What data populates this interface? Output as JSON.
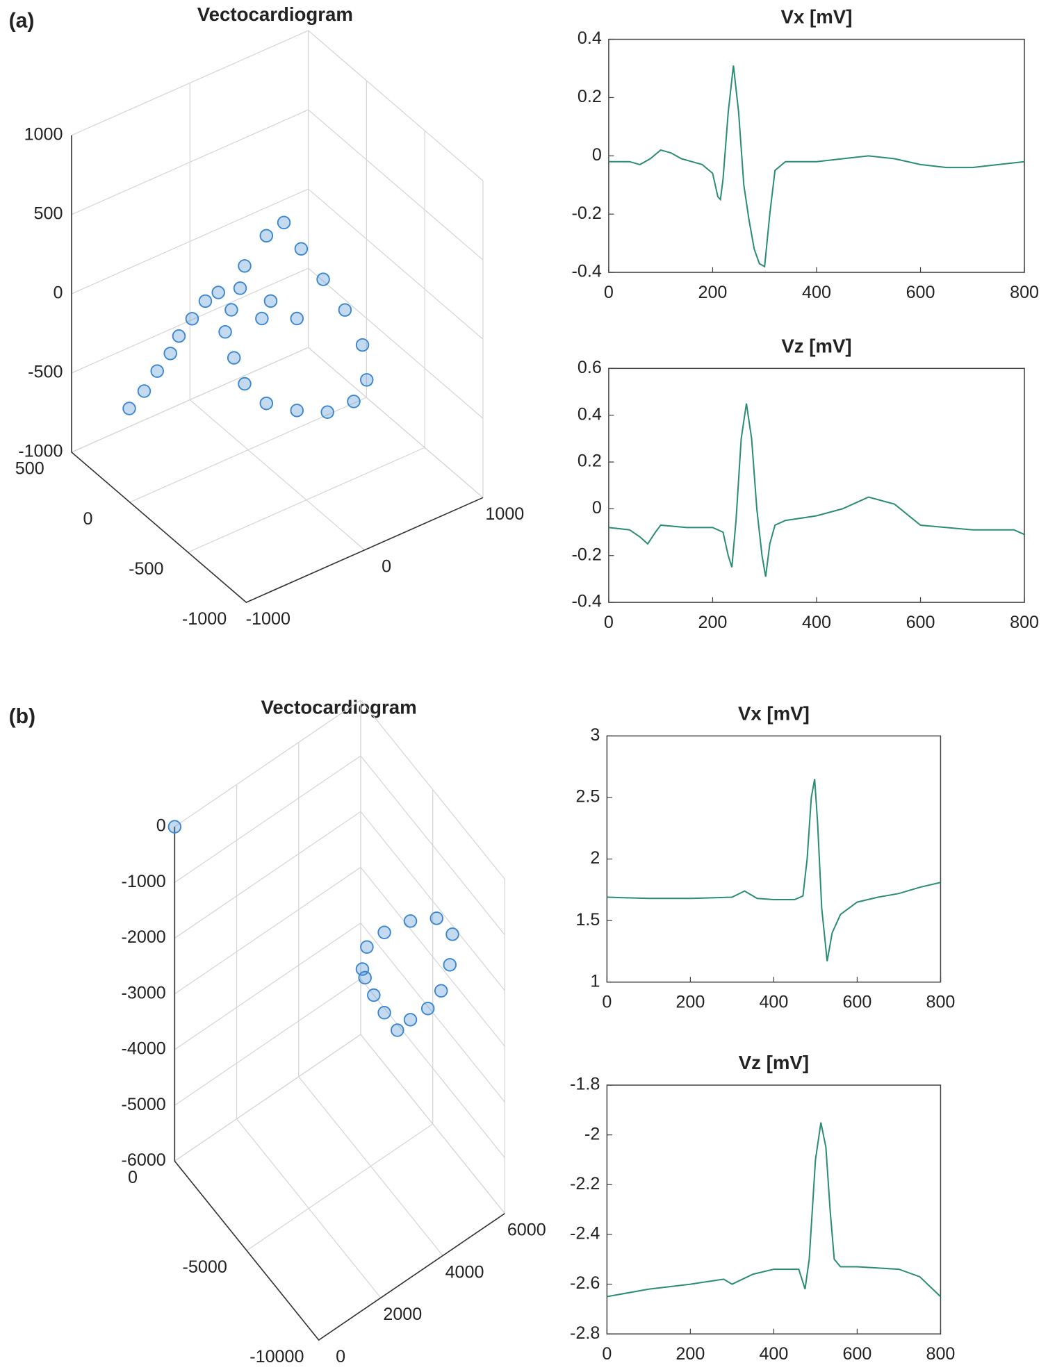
{
  "chart_data": [
    {
      "type": "scatter3d",
      "label": "(a)",
      "title": "Vectocardiogram",
      "color": "#3b86d0",
      "xlim": [
        -1000,
        1000
      ],
      "xticks": [
        -1000,
        0,
        1000
      ],
      "ylim": [
        -1000,
        500
      ],
      "yticks": [
        -1000,
        -500,
        0,
        500
      ],
      "zlim": [
        -1000,
        1000
      ],
      "zticks": [
        -1000,
        -500,
        0,
        500,
        1000
      ],
      "x": [
        -808,
        -682,
        -572,
        -608,
        -536,
        -572,
        -608,
        -498,
        -314,
        -56,
        166,
        -130,
        -388,
        -276,
        -92,
        56,
        202,
        388,
        572,
        720,
        756,
        646,
        424,
        166,
        -92,
        -276,
        -366,
        -440
      ],
      "y": [
        200,
        200,
        200,
        50,
        50,
        -100,
        -250,
        -250,
        -250,
        -250,
        -250,
        -250,
        -250,
        -250,
        -250,
        -250,
        -250,
        -250,
        -250,
        -250,
        -250,
        -250,
        -250,
        -250,
        -250,
        -250,
        -250,
        -250
      ],
      "z": [
        -598,
        -530,
        -440,
        -222,
        -136,
        80,
        298,
        316,
        282,
        116,
        -68,
        30,
        170,
        410,
        540,
        574,
        360,
        106,
        -148,
        -418,
        -650,
        -750,
        -744,
        -648,
        -518,
        -334,
        -140,
        48
      ]
    },
    {
      "type": "line",
      "title": "Vx [mV]",
      "color": "#2b8c74",
      "xlim": [
        0,
        800
      ],
      "xticks": [
        0,
        200,
        400,
        600,
        800
      ],
      "ylim": [
        -0.4,
        0.4
      ],
      "yticks": [
        -0.4,
        -0.2,
        0,
        0.2,
        0.4
      ],
      "x": [
        0,
        40,
        60,
        80,
        100,
        120,
        140,
        160,
        180,
        200,
        210,
        215,
        220,
        230,
        240,
        250,
        260,
        270,
        280,
        290,
        300,
        310,
        320,
        340,
        360,
        400,
        450,
        500,
        550,
        600,
        650,
        700,
        750,
        800
      ],
      "values": [
        -0.02,
        -0.02,
        -0.03,
        -0.01,
        0.02,
        0.01,
        -0.01,
        -0.02,
        -0.03,
        -0.06,
        -0.14,
        -0.15,
        -0.08,
        0.15,
        0.31,
        0.15,
        -0.1,
        -0.22,
        -0.32,
        -0.37,
        -0.38,
        -0.2,
        -0.05,
        -0.02,
        -0.02,
        -0.02,
        -0.01,
        0,
        -0.01,
        -0.03,
        -0.04,
        -0.04,
        -0.03,
        -0.02
      ]
    },
    {
      "type": "line",
      "title": "Vz [mV]",
      "color": "#2b8c74",
      "xlim": [
        0,
        800
      ],
      "xticks": [
        0,
        200,
        400,
        600,
        800
      ],
      "ylim": [
        -0.4,
        0.6
      ],
      "yticks": [
        -0.4,
        -0.2,
        0,
        0.2,
        0.4,
        0.6
      ],
      "x": [
        0,
        40,
        60,
        75,
        90,
        100,
        150,
        200,
        220,
        230,
        237,
        245,
        255,
        265,
        275,
        285,
        295,
        302,
        310,
        320,
        340,
        400,
        450,
        500,
        550,
        600,
        700,
        780,
        800
      ],
      "values": [
        -0.08,
        -0.09,
        -0.12,
        -0.15,
        -0.1,
        -0.07,
        -0.08,
        -0.08,
        -0.1,
        -0.2,
        -0.25,
        -0.05,
        0.3,
        0.45,
        0.3,
        0,
        -0.2,
        -0.29,
        -0.15,
        -0.07,
        -0.05,
        -0.03,
        0,
        0.05,
        0.02,
        -0.07,
        -0.09,
        -0.09,
        -0.11
      ]
    },
    {
      "type": "scatter3d",
      "label": "(b)",
      "title": "Vectocardiogram",
      "color": "#3b86d0",
      "xlim": [
        0,
        6000
      ],
      "xticks": [
        0,
        2000,
        4000,
        6000
      ],
      "ylim": [
        -10000,
        0
      ],
      "yticks": [
        -10000,
        -5000,
        0
      ],
      "zlim": [
        -6000,
        0
      ],
      "zticks": [
        -6000,
        -5000,
        -4000,
        -3000,
        -2000,
        -1000,
        0
      ],
      "x": [
        0,
        2802,
        2946,
        3510,
        4350,
        5196,
        5706,
        5622,
        5340,
        4914,
        4350,
        3930,
        3510,
        3168,
        2886
      ],
      "y": [
        0,
        -7000,
        -7000,
        -7000,
        -7000,
        -7000,
        -7000,
        -7000,
        -7000,
        -7000,
        -7000,
        -7000,
        -7000,
        -7000,
        -7000
      ],
      "z": [
        0,
        -1368,
        -1026,
        -978,
        -1092,
        -1362,
        -1842,
        -2358,
        -2718,
        -2874,
        -2862,
        -2892,
        -2418,
        -1974,
        -1554
      ]
    },
    {
      "type": "line",
      "title": "Vx [mV]",
      "color": "#2b8c74",
      "xlim": [
        0,
        800
      ],
      "xticks": [
        0,
        200,
        400,
        600,
        800
      ],
      "ylim": [
        1,
        3
      ],
      "yticks": [
        1,
        1.5,
        2,
        2.5,
        3
      ],
      "x": [
        0,
        100,
        200,
        300,
        330,
        360,
        400,
        450,
        470,
        480,
        490,
        498,
        505,
        515,
        528,
        540,
        560,
        600,
        650,
        700,
        750,
        800
      ],
      "values": [
        1.69,
        1.68,
        1.68,
        1.69,
        1.74,
        1.68,
        1.67,
        1.67,
        1.7,
        2,
        2.5,
        2.65,
        2.3,
        1.6,
        1.17,
        1.4,
        1.55,
        1.65,
        1.69,
        1.72,
        1.77,
        1.81
      ]
    },
    {
      "type": "line",
      "title": "Vz [mV]",
      "color": "#2b8c74",
      "xlim": [
        0,
        800
      ],
      "xticks": [
        0,
        200,
        400,
        600,
        800
      ],
      "ylim": [
        -2.8,
        -1.8
      ],
      "yticks": [
        -2.8,
        -2.6,
        -2.4,
        -2.2,
        -2,
        -1.8
      ],
      "x": [
        0,
        100,
        200,
        280,
        300,
        350,
        400,
        460,
        475,
        485,
        500,
        513,
        525,
        535,
        545,
        560,
        600,
        700,
        750,
        800
      ],
      "values": [
        -2.65,
        -2.62,
        -2.6,
        -2.58,
        -2.6,
        -2.56,
        -2.54,
        -2.54,
        -2.62,
        -2.5,
        -2.1,
        -1.95,
        -2.05,
        -2.3,
        -2.5,
        -2.53,
        -2.53,
        -2.54,
        -2.57,
        -2.65
      ]
    }
  ]
}
